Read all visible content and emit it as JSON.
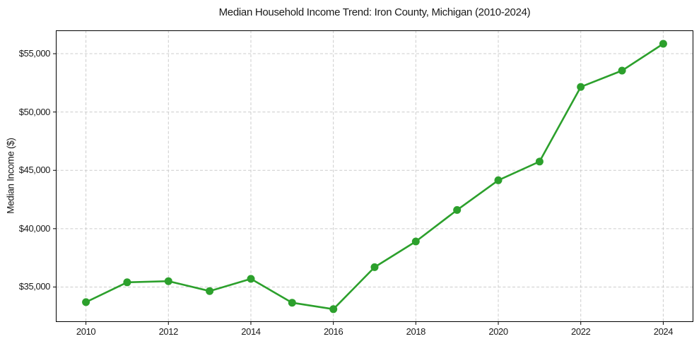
{
  "figure": {
    "background_color": "#ffffff"
  },
  "chart_data": {
    "type": "line",
    "title": "Median Household Income Trend: Iron County, Michigan (2010-2024)",
    "xlabel": "",
    "ylabel": "Median Income ($)",
    "x": [
      2010,
      2011,
      2012,
      2013,
      2014,
      2015,
      2016,
      2017,
      2018,
      2019,
      2020,
      2021,
      2022,
      2023,
      2024
    ],
    "series": [
      {
        "name": "Median household income",
        "color": "#2ca02c",
        "marker": "circle",
        "values": [
          33700,
          35400,
          35500,
          34650,
          35700,
          33650,
          33100,
          36700,
          38900,
          41600,
          44150,
          45750,
          52150,
          53550,
          55850
        ]
      }
    ],
    "x_ticks": [
      2010,
      2012,
      2014,
      2016,
      2018,
      2020,
      2022,
      2024
    ],
    "x_tick_labels": [
      "2010",
      "2012",
      "2014",
      "2016",
      "2018",
      "2020",
      "2022",
      "2024"
    ],
    "y_ticks": [
      35000,
      40000,
      45000,
      50000,
      55000
    ],
    "y_tick_labels": [
      "$35,000",
      "$40,000",
      "$45,000",
      "$50,000",
      "$55,000"
    ],
    "xlim": [
      2009.27,
      2024.73
    ],
    "ylim": [
      32000,
      57000
    ],
    "grid": true,
    "grid_style": "dashed",
    "grid_color": "#cccccc",
    "spine_color": "#000000",
    "text_color": "#1a1a1a",
    "legend": "none"
  }
}
